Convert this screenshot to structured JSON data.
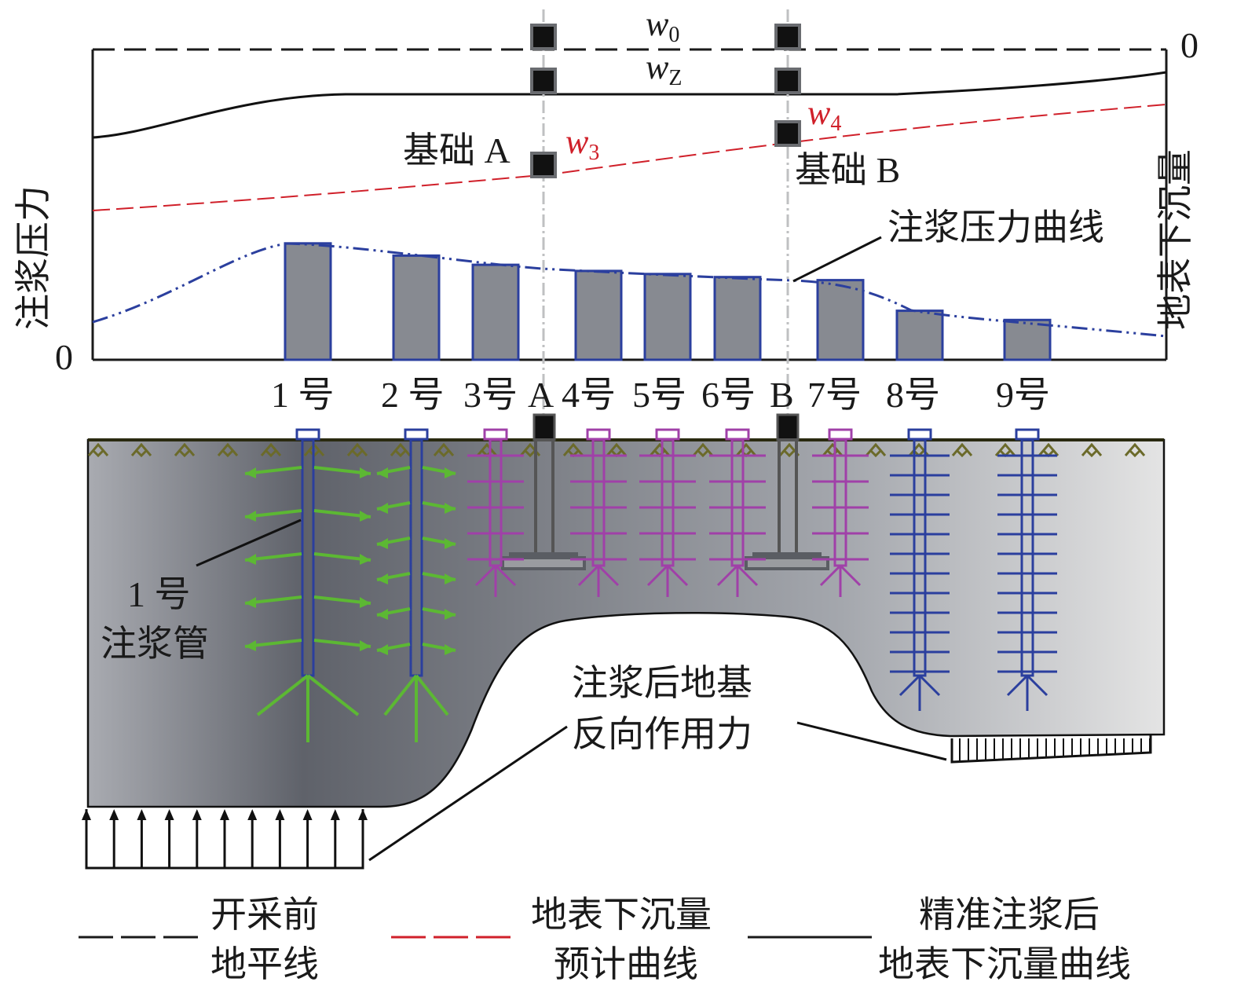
{
  "axes": {
    "left_label": "注浆压力",
    "left_zero": "0",
    "right_label": "地表下沉量",
    "right_zero": "0"
  },
  "curve_labels": {
    "w0": "w",
    "w0_sub": "0",
    "wz": "w",
    "wz_sub": "Z",
    "w3": "w",
    "w3_sub": "3",
    "w4": "w",
    "w4_sub": "4",
    "grout_pressure_curve": "注浆压力曲线"
  },
  "foundations": {
    "a_label": "基础 A",
    "b_label": "基础 B",
    "a_short": "A",
    "b_short": "B"
  },
  "pipes": [
    {
      "label": "1 号",
      "color": "#2b3f9e",
      "arrow_color": "#5cb833",
      "pressure": 0.38
    },
    {
      "label": "2 号",
      "color": "#2b3f9e",
      "arrow_color": "#5cb833",
      "pressure": 0.34
    },
    {
      "label": "3号",
      "color": "#a040a8",
      "arrow_color": "#a040a8",
      "pressure": 0.31
    },
    {
      "label": "4号",
      "color": "#a040a8",
      "arrow_color": "#a040a8",
      "pressure": 0.29
    },
    {
      "label": "5号",
      "color": "#a040a8",
      "arrow_color": "#a040a8",
      "pressure": 0.28
    },
    {
      "label": "6号",
      "color": "#a040a8",
      "arrow_color": "#a040a8",
      "pressure": 0.27
    },
    {
      "label": "7号",
      "color": "#a040a8",
      "arrow_color": "#a040a8",
      "pressure": 0.26
    },
    {
      "label": "8号",
      "color": "#2b3f9e",
      "arrow_color": "#2b3f9e",
      "pressure": 0.16
    },
    {
      "label": "9号",
      "color": "#2b3f9e",
      "arrow_color": "#2b3f9e",
      "pressure": 0.13
    }
  ],
  "annotations": {
    "pipe1_line1": "1 号",
    "pipe1_line2": "注浆管",
    "reaction_line1": "注浆后地基",
    "reaction_line2": "反向作用力"
  },
  "legend": [
    {
      "line1": "开采前",
      "line2": "地平线",
      "style": "dashed",
      "color": "#1a1a1a"
    },
    {
      "line1": "地表下沉量",
      "line2": "预计曲线",
      "style": "dashed",
      "color": "#d0202a"
    },
    {
      "line1": "精准注浆后",
      "line2": "地表下沉量曲线",
      "style": "solid",
      "color": "#1a1a1a"
    }
  ],
  "colors": {
    "bar_fill": "#878a91",
    "bar_border": "#2b3f9e",
    "pressure_curve": "#2b3f9e",
    "predicted_curve": "#d0202a",
    "ground": "#6c6f76"
  }
}
